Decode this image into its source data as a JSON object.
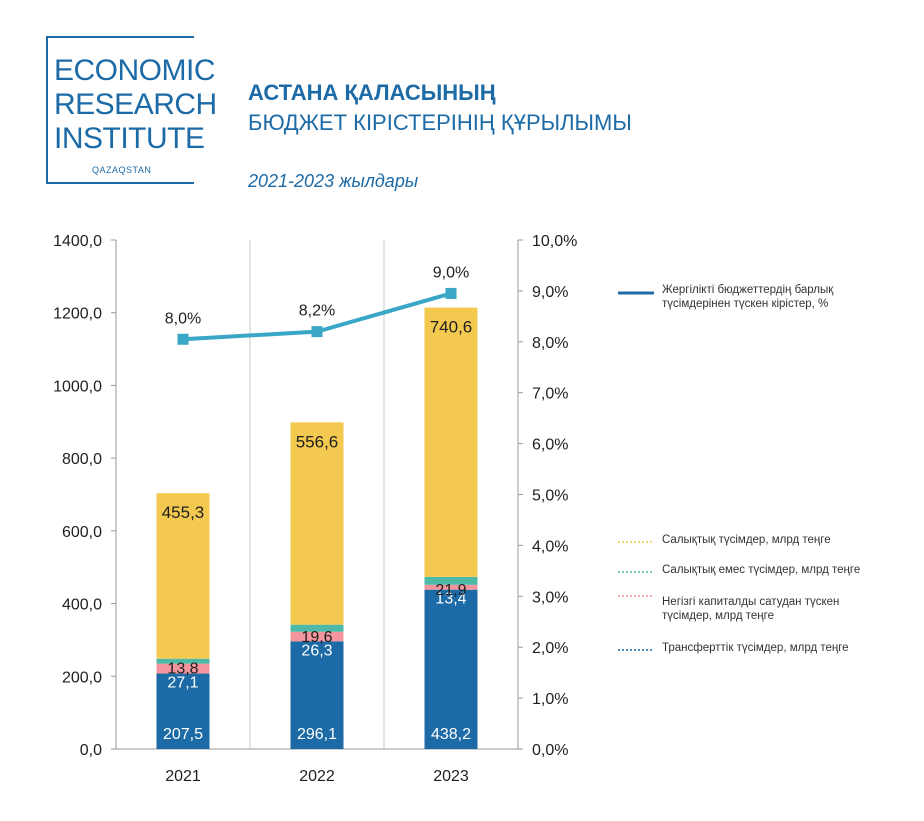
{
  "logo": {
    "line1": "ECONOMIC",
    "line2": "RESEARCH",
    "line3": "INSTITUTE",
    "sub": "QAZAQSTAN"
  },
  "header": {
    "title_line1": "АСТАНА ҚАЛАСЫНЫҢ",
    "title_line2": "БЮДЖЕТ КІРІСТЕРІНІҢ ҚҰРЫЛЫМЫ",
    "subtitle": "2021-2023 жылдары"
  },
  "colors": {
    "transfers": "#1c6aa6",
    "capital": "#f4949c",
    "nontax": "#4fb9a8",
    "tax": "#f3c94f",
    "line": "#3aa7c7",
    "brand": "#1c6aa6"
  },
  "chart_data": {
    "type": "bar",
    "stacked": true,
    "categories": [
      "2021",
      "2022",
      "2023"
    ],
    "series": [
      {
        "name": "Трансферттік түсімдер, млрд теңге",
        "values": [
          207.5,
          296.1,
          438.2
        ],
        "labels": [
          "207,5",
          "296,1",
          "438,2"
        ]
      },
      {
        "name": "Негізгі капиталды сатудан түскен түсімдер, млрд теңге",
        "values": [
          27.1,
          26.3,
          13.4
        ],
        "labels": [
          "27,1",
          "26,3",
          "13,4"
        ]
      },
      {
        "name": "Салықтық емес түсімдер, млрд теңге",
        "values": [
          13.8,
          19.6,
          21.9
        ],
        "labels": [
          "13,8",
          "19,6",
          "21,9"
        ]
      },
      {
        "name": "Салықтық түсімдер, млрд теңге",
        "values": [
          455.3,
          556.6,
          740.6
        ],
        "labels": [
          "455,3",
          "556,6",
          "740,6"
        ]
      }
    ],
    "line_series": {
      "name": "Жергілікті бюджеттердің барлық түсімдерінен түскен кірістер, %",
      "values": [
        8.05,
        8.2,
        8.95
      ],
      "labels": [
        "8,0%",
        "8,2%",
        "9,0%"
      ]
    },
    "ylim": [
      0,
      1400
    ],
    "yticks": [
      "0,0",
      "200,0",
      "400,0",
      "600,0",
      "800,0",
      "1000,0",
      "1200,0",
      "1400,0"
    ],
    "y2lim": [
      0,
      10
    ],
    "y2ticks": [
      "0,0%",
      "1,0%",
      "2,0%",
      "3,0%",
      "4,0%",
      "5,0%",
      "6,0%",
      "7,0%",
      "8,0%",
      "9,0%",
      "10,0%"
    ],
    "grid": true,
    "legend": {
      "line": "Жергілікті бюджеттердің барлық түсімдерінен түскен кірістер, %",
      "tax": "Салықтық түсімдер, млрд теңге",
      "nontax": "Салықтық емес түсімдер, млрд теңге",
      "capital_line1": "Негізгі капиталды сатудан түскен",
      "capital_line2": "түсімдер, млрд теңге",
      "transfers": "Трансферттік түсімдер, млрд теңге",
      "line_text_1": "Жергілікті бюджеттердің барлық",
      "line_text_2": "түсімдерінен түскен кірістер, %"
    }
  }
}
